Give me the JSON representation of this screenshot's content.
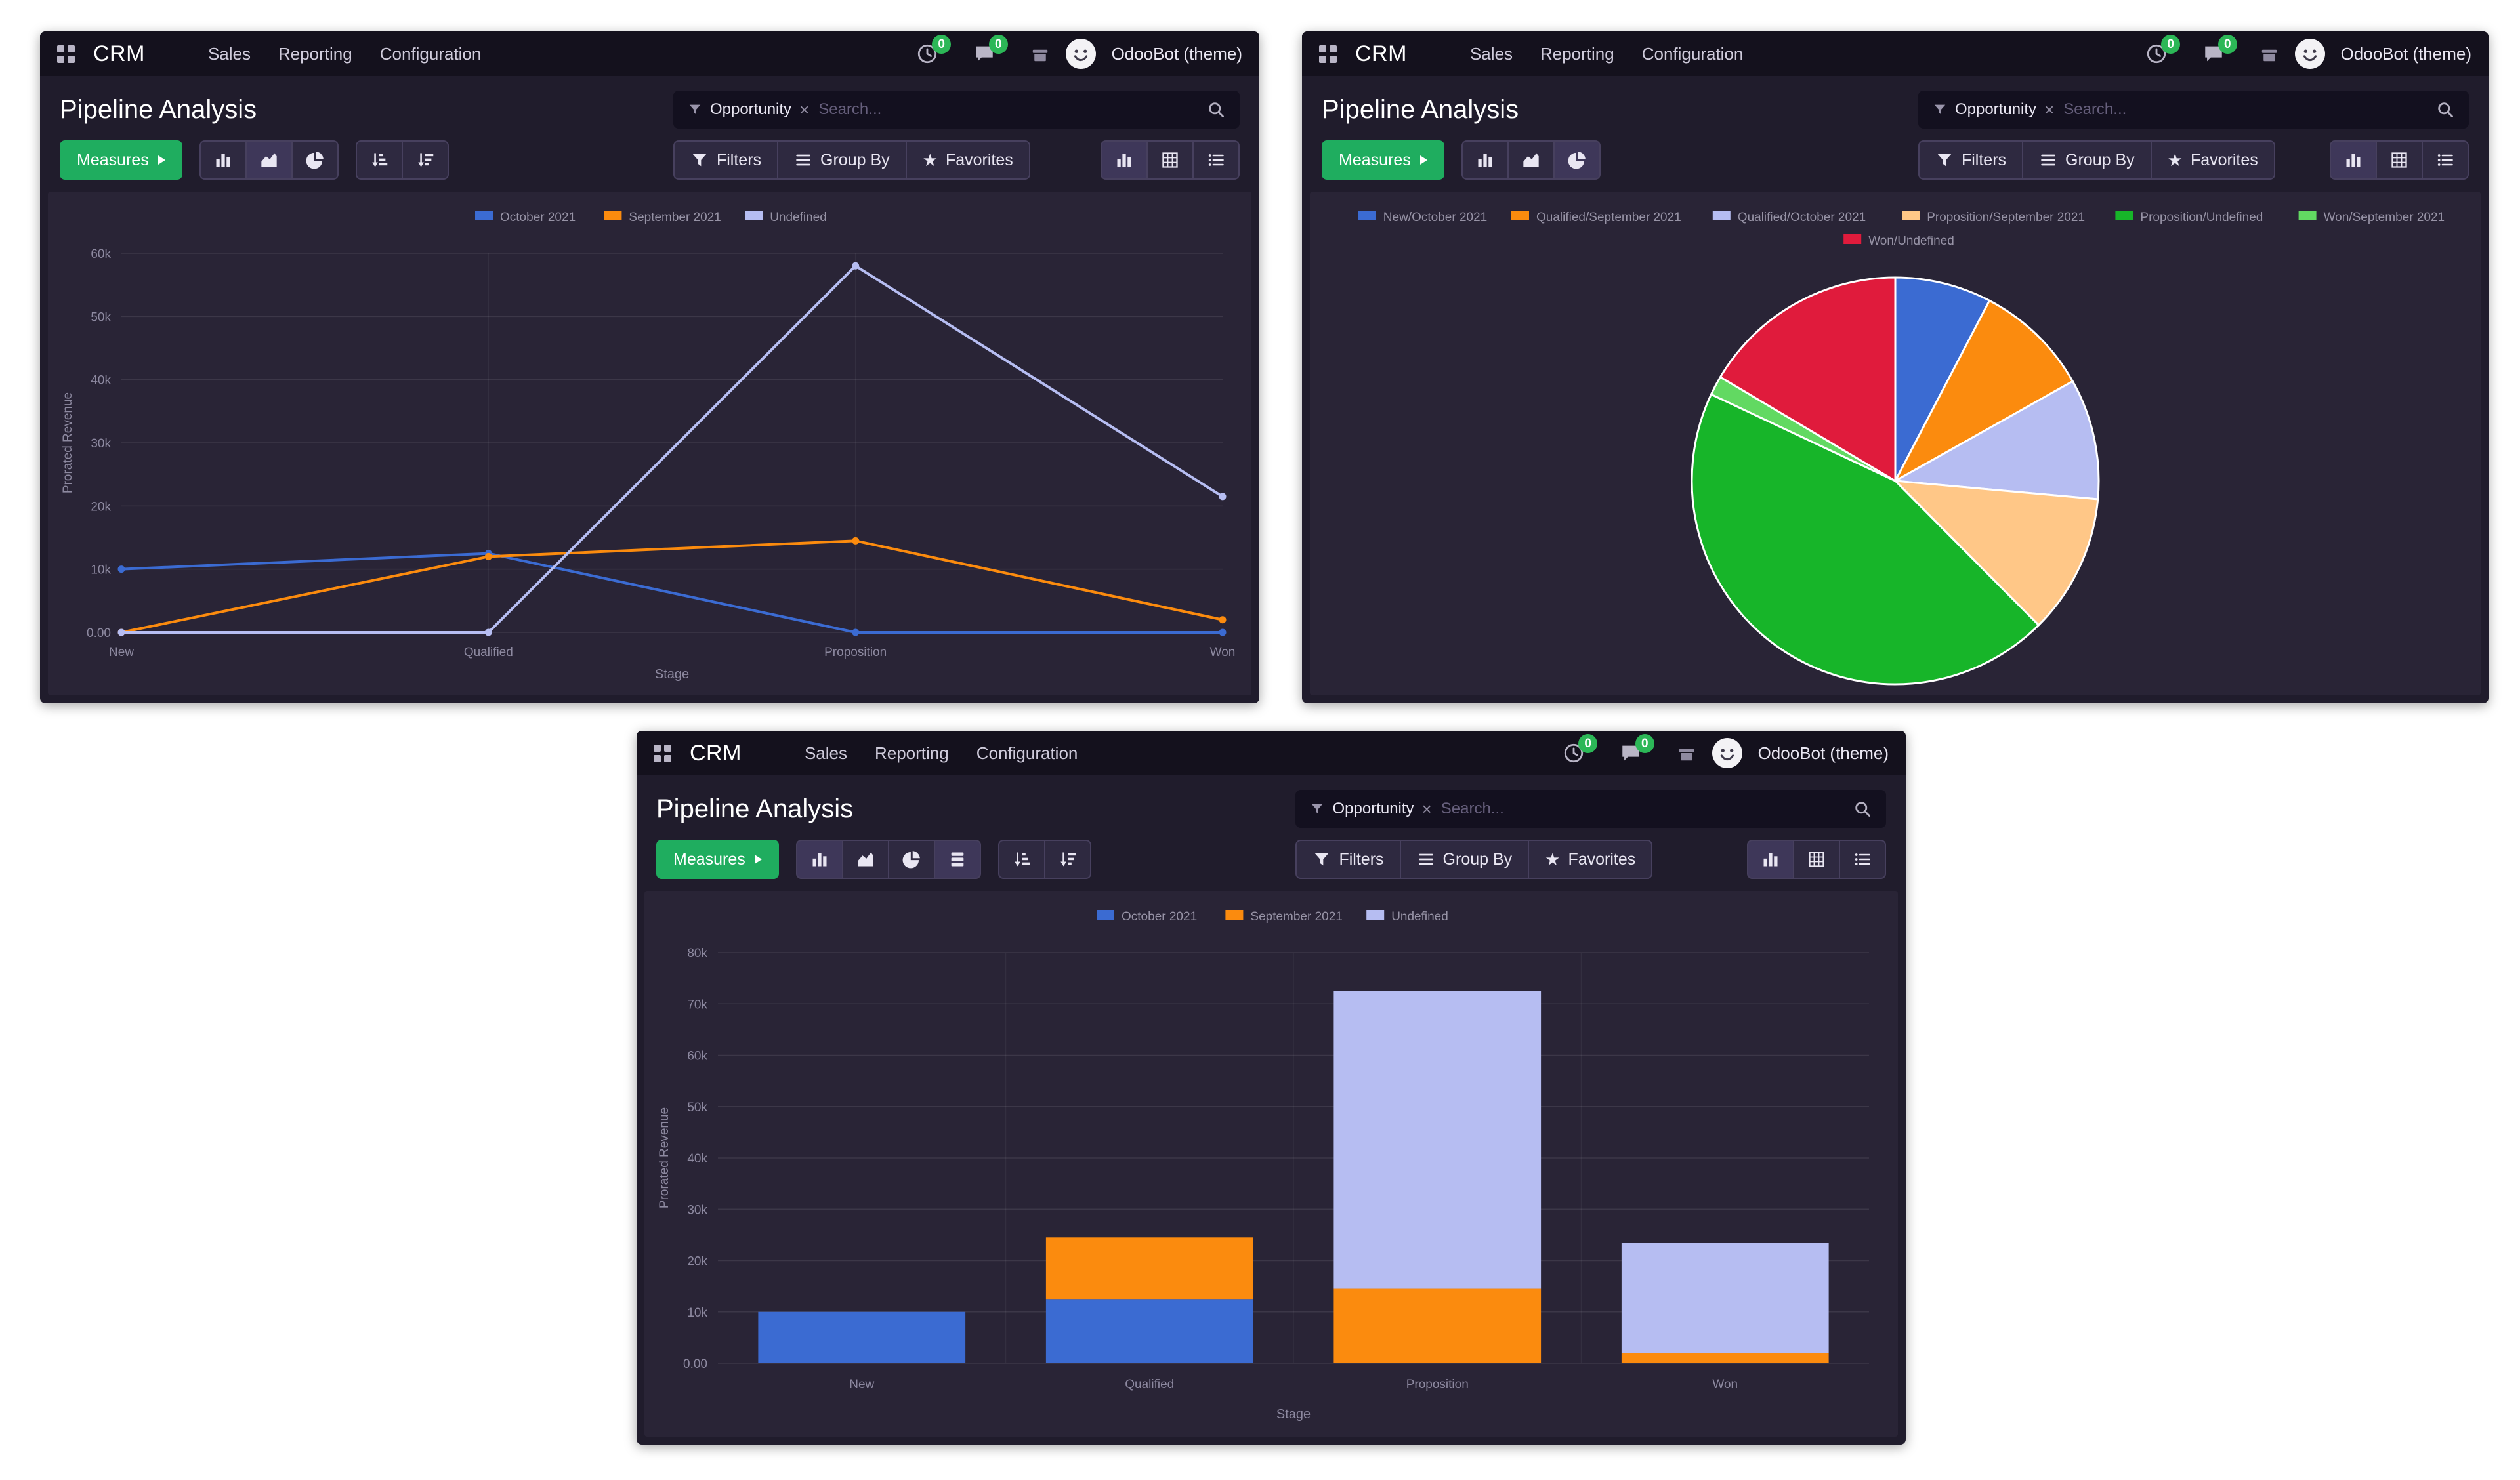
{
  "app": {
    "brand": "CRM",
    "menu": [
      "Sales",
      "Reporting",
      "Configuration"
    ],
    "systray": {
      "activity_count": "0",
      "message_count": "0"
    },
    "user_name": "OdooBot (theme)"
  },
  "control": {
    "title": "Pipeline Analysis",
    "measures_label": "Measures",
    "filters_label": "Filters",
    "group_by_label": "Group By",
    "favorites_label": "Favorites",
    "search_facet": "Opportunity",
    "search_placeholder": "Search..."
  },
  "icons": {
    "facet_remove": "×",
    "favorites_star": "★"
  },
  "colors": {
    "primary_green": "#1fad5f",
    "badge_green": "#2cb757",
    "october_blue": "#3b6bd2",
    "september_orange": "#fb8b0e",
    "undefined_lavender": "#b6bdf2",
    "proposition_peach": "#ffc787",
    "proposition_green": "#17b529",
    "won_light_green": "#62d962",
    "won_red": "#e01b3c"
  },
  "chart_data": [
    {
      "type": "line",
      "title": "Pipeline Analysis",
      "xlabel": "Stage",
      "ylabel": "Prorated Revenue",
      "categories": [
        "New",
        "Qualified",
        "Proposition",
        "Won"
      ],
      "series": [
        {
          "name": "October 2021",
          "color": "#3b6bd2",
          "values": [
            10000,
            12500,
            0,
            0
          ]
        },
        {
          "name": "September 2021",
          "color": "#fb8b0e",
          "values": [
            0,
            12000,
            14500,
            2000
          ]
        },
        {
          "name": "Undefined",
          "color": "#b6bdf2",
          "values": [
            0,
            0,
            58000,
            21500
          ]
        }
      ],
      "ylim": [
        0,
        60000
      ],
      "yticks": [
        {
          "value": 0,
          "label": "0.00"
        },
        {
          "value": 10000,
          "label": "10k"
        },
        {
          "value": 20000,
          "label": "20k"
        },
        {
          "value": 30000,
          "label": "30k"
        },
        {
          "value": 40000,
          "label": "40k"
        },
        {
          "value": 50000,
          "label": "50k"
        },
        {
          "value": 60000,
          "label": "60k"
        }
      ],
      "grid": true,
      "legend_position": "top"
    },
    {
      "type": "pie",
      "title": "Pipeline Analysis",
      "slices": [
        {
          "label": "New/October 2021",
          "value": 10000,
          "color": "#3b6bd2"
        },
        {
          "label": "Qualified/September 2021",
          "value": 12000,
          "color": "#fb8b0e"
        },
        {
          "label": "Qualified/October 2021",
          "value": 12500,
          "color": "#b6bdf2"
        },
        {
          "label": "Proposition/September 2021",
          "value": 14500,
          "color": "#ffc787"
        },
        {
          "label": "Proposition/Undefined",
          "value": 58000,
          "color": "#17b529"
        },
        {
          "label": "Won/September 2021",
          "value": 2000,
          "color": "#62d962"
        },
        {
          "label": "Won/Undefined",
          "value": 21500,
          "color": "#e01b3c"
        }
      ],
      "legend_position": "top"
    },
    {
      "type": "bar",
      "stacked": true,
      "title": "Pipeline Analysis",
      "xlabel": "Stage",
      "ylabel": "Prorated Revenue",
      "categories": [
        "New",
        "Qualified",
        "Proposition",
        "Won"
      ],
      "series": [
        {
          "name": "October 2021",
          "color": "#3b6bd2",
          "values": [
            10000,
            12500,
            0,
            0
          ]
        },
        {
          "name": "September 2021",
          "color": "#fb8b0e",
          "values": [
            0,
            12000,
            14500,
            2000
          ]
        },
        {
          "name": "Undefined",
          "color": "#b6bdf2",
          "values": [
            0,
            0,
            58000,
            21500
          ]
        }
      ],
      "ylim": [
        0,
        80000
      ],
      "yticks": [
        {
          "value": 0,
          "label": "0.00"
        },
        {
          "value": 10000,
          "label": "10k"
        },
        {
          "value": 20000,
          "label": "20k"
        },
        {
          "value": 30000,
          "label": "30k"
        },
        {
          "value": 40000,
          "label": "40k"
        },
        {
          "value": 50000,
          "label": "50k"
        },
        {
          "value": 60000,
          "label": "60k"
        },
        {
          "value": 70000,
          "label": "70k"
        },
        {
          "value": 80000,
          "label": "80k"
        }
      ],
      "grid": true,
      "legend_position": "top"
    }
  ]
}
